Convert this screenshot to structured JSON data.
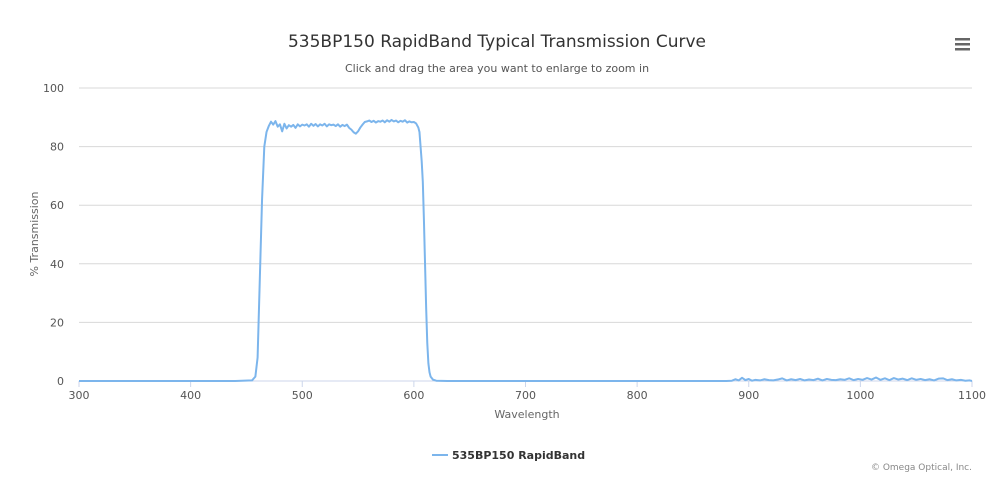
{
  "chart_data": {
    "type": "line",
    "title": "535BP150 RapidBand Typical Transmission Curve",
    "subtitle": "Click and drag the area you want to enlarge to zoom in",
    "xlabel": "Wavelength",
    "ylabel": "% Transmission",
    "xlim": [
      300,
      1100
    ],
    "ylim": [
      0,
      100
    ],
    "x_ticks": [
      300,
      400,
      500,
      600,
      700,
      800,
      900,
      1000,
      1100
    ],
    "y_ticks": [
      0,
      20,
      40,
      60,
      80,
      100
    ],
    "grid": true,
    "legend_position": "bottom-center",
    "colors": {
      "series": "#7cb5ec",
      "grid": "#d8d8d8",
      "axis": "#ccd6eb"
    },
    "series": [
      {
        "name": "535BP150 RapidBand",
        "points": [
          [
            300,
            0
          ],
          [
            350,
            0
          ],
          [
            400,
            0
          ],
          [
            440,
            0
          ],
          [
            455,
            0.2
          ],
          [
            458,
            1.5
          ],
          [
            460,
            8
          ],
          [
            462,
            35
          ],
          [
            464,
            62
          ],
          [
            466,
            80
          ],
          [
            468,
            85
          ],
          [
            470,
            87
          ],
          [
            472,
            88.5
          ],
          [
            474,
            87.5
          ],
          [
            476,
            88.7
          ],
          [
            478,
            86.8
          ],
          [
            480,
            87.6
          ],
          [
            482,
            85.2
          ],
          [
            484,
            87.8
          ],
          [
            486,
            86.2
          ],
          [
            488,
            87.3
          ],
          [
            490,
            86.8
          ],
          [
            492,
            87.4
          ],
          [
            494,
            86.4
          ],
          [
            496,
            87.6
          ],
          [
            498,
            86.9
          ],
          [
            500,
            87.5
          ],
          [
            502,
            87.2
          ],
          [
            504,
            87.6
          ],
          [
            506,
            86.8
          ],
          [
            508,
            87.8
          ],
          [
            510,
            87.1
          ],
          [
            512,
            87.7
          ],
          [
            514,
            86.9
          ],
          [
            516,
            87.6
          ],
          [
            518,
            87.2
          ],
          [
            520,
            87.8
          ],
          [
            522,
            86.9
          ],
          [
            524,
            87.6
          ],
          [
            526,
            87.3
          ],
          [
            528,
            87.5
          ],
          [
            530,
            87.0
          ],
          [
            532,
            87.6
          ],
          [
            534,
            86.8
          ],
          [
            536,
            87.4
          ],
          [
            538,
            87.0
          ],
          [
            540,
            87.5
          ],
          [
            542,
            86.4
          ],
          [
            544,
            85.8
          ],
          [
            546,
            84.9
          ],
          [
            548,
            84.4
          ],
          [
            550,
            85.2
          ],
          [
            552,
            86.5
          ],
          [
            554,
            87.5
          ],
          [
            556,
            88.4
          ],
          [
            558,
            88.6
          ],
          [
            560,
            88.9
          ],
          [
            562,
            88.4
          ],
          [
            564,
            88.8
          ],
          [
            566,
            88.2
          ],
          [
            568,
            88.7
          ],
          [
            570,
            88.5
          ],
          [
            572,
            88.9
          ],
          [
            574,
            88.3
          ],
          [
            576,
            89.0
          ],
          [
            578,
            88.5
          ],
          [
            580,
            89.1
          ],
          [
            582,
            88.6
          ],
          [
            584,
            88.9
          ],
          [
            586,
            88.3
          ],
          [
            588,
            88.8
          ],
          [
            590,
            88.5
          ],
          [
            592,
            89.0
          ],
          [
            594,
            88.2
          ],
          [
            596,
            88.6
          ],
          [
            598,
            88.3
          ],
          [
            600,
            88.4
          ],
          [
            602,
            87.9
          ],
          [
            604,
            86.5
          ],
          [
            605,
            85
          ],
          [
            606,
            80
          ],
          [
            607,
            75
          ],
          [
            608,
            68
          ],
          [
            609,
            55
          ],
          [
            610,
            40
          ],
          [
            611,
            25
          ],
          [
            612,
            13
          ],
          [
            613,
            6
          ],
          [
            614,
            3
          ],
          [
            615,
            1.5
          ],
          [
            617,
            0.5
          ],
          [
            620,
            0.1
          ],
          [
            630,
            0
          ],
          [
            700,
            0
          ],
          [
            800,
            0
          ],
          [
            850,
            0
          ],
          [
            880,
            0
          ],
          [
            885,
            0.1
          ],
          [
            888,
            0.6
          ],
          [
            891,
            0.2
          ],
          [
            894,
            1.1
          ],
          [
            897,
            0.3
          ],
          [
            900,
            0.7
          ],
          [
            903,
            0.1
          ],
          [
            906,
            0.4
          ],
          [
            910,
            0.2
          ],
          [
            914,
            0.6
          ],
          [
            918,
            0.3
          ],
          [
            922,
            0.2
          ],
          [
            926,
            0.5
          ],
          [
            930,
            0.9
          ],
          [
            934,
            0.2
          ],
          [
            938,
            0.6
          ],
          [
            942,
            0.3
          ],
          [
            946,
            0.7
          ],
          [
            950,
            0.2
          ],
          [
            954,
            0.5
          ],
          [
            958,
            0.3
          ],
          [
            962,
            0.8
          ],
          [
            966,
            0.2
          ],
          [
            970,
            0.7
          ],
          [
            974,
            0.4
          ],
          [
            978,
            0.3
          ],
          [
            982,
            0.6
          ],
          [
            986,
            0.4
          ],
          [
            990,
            0.9
          ],
          [
            994,
            0.3
          ],
          [
            998,
            0.7
          ],
          [
            1002,
            0.4
          ],
          [
            1006,
            1.0
          ],
          [
            1010,
            0.5
          ],
          [
            1014,
            1.2
          ],
          [
            1018,
            0.4
          ],
          [
            1022,
            0.9
          ],
          [
            1026,
            0.3
          ],
          [
            1030,
            1.0
          ],
          [
            1034,
            0.5
          ],
          [
            1038,
            0.8
          ],
          [
            1042,
            0.3
          ],
          [
            1046,
            0.9
          ],
          [
            1050,
            0.4
          ],
          [
            1054,
            0.7
          ],
          [
            1058,
            0.3
          ],
          [
            1062,
            0.6
          ],
          [
            1066,
            0.2
          ],
          [
            1070,
            0.8
          ],
          [
            1074,
            0.9
          ],
          [
            1078,
            0.3
          ],
          [
            1082,
            0.6
          ],
          [
            1086,
            0.2
          ],
          [
            1090,
            0.4
          ],
          [
            1094,
            0.1
          ],
          [
            1098,
            0.2
          ],
          [
            1100,
            0
          ]
        ]
      }
    ]
  },
  "credits": "© Omega Optical, Inc.",
  "menu": {
    "icon": "hamburger-menu-icon"
  }
}
